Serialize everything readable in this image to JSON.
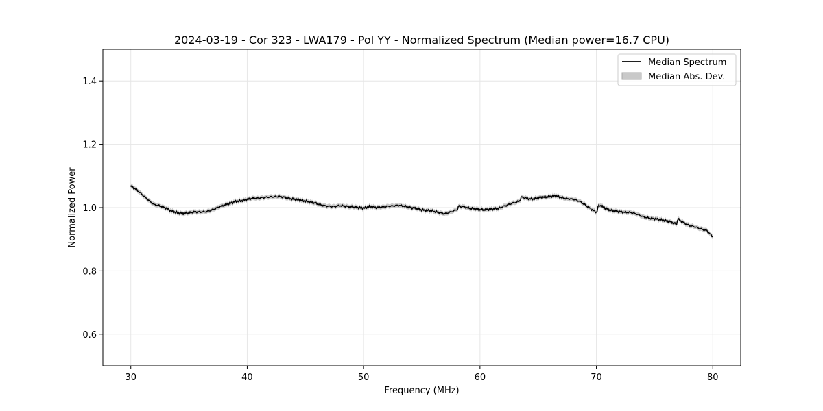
{
  "chart_data": {
    "type": "line",
    "title": "2024-03-19 - Cor 323 - LWA179 - Pol YY - Normalized Spectrum (Median power=16.7 CPU)",
    "xlabel": "Frequency (MHz)",
    "ylabel": "Normalized Power",
    "xlim": [
      27.6,
      82.4
    ],
    "ylim": [
      0.5,
      1.5
    ],
    "xticks": [
      30,
      40,
      50,
      60,
      70,
      80
    ],
    "xtick_labels": [
      "30",
      "40",
      "50",
      "60",
      "70",
      "80"
    ],
    "yticks": [
      0.6,
      0.8,
      1.0,
      1.2,
      1.4
    ],
    "ytick_labels": [
      "0.6",
      "0.8",
      "1.0",
      "1.2",
      "1.4"
    ],
    "grid": true,
    "legend_position": "top-right",
    "series": [
      {
        "name": "Median Spectrum",
        "color": "#000000",
        "x": [
          30.0,
          30.5,
          31.0,
          31.5,
          32.0,
          32.5,
          33.0,
          33.5,
          34.0,
          34.5,
          35.0,
          35.5,
          36.0,
          36.5,
          37.0,
          37.5,
          38.0,
          38.5,
          39.0,
          39.5,
          40.0,
          40.5,
          41.0,
          41.5,
          42.0,
          42.5,
          43.0,
          43.5,
          44.0,
          44.5,
          45.0,
          45.5,
          46.0,
          46.5,
          47.0,
          47.5,
          48.0,
          48.5,
          49.0,
          49.5,
          50.0,
          50.5,
          51.0,
          51.5,
          52.0,
          52.5,
          53.0,
          53.5,
          54.0,
          54.5,
          55.0,
          55.5,
          56.0,
          56.5,
          57.0,
          57.5,
          58.0,
          58.2,
          58.5,
          59.0,
          59.5,
          60.0,
          60.5,
          61.0,
          61.5,
          62.0,
          62.5,
          63.0,
          63.4,
          63.6,
          64.0,
          64.5,
          65.0,
          65.5,
          66.0,
          66.5,
          67.0,
          67.5,
          68.0,
          68.5,
          69.0,
          69.5,
          70.0,
          70.2,
          70.5,
          71.0,
          71.5,
          72.0,
          72.5,
          73.0,
          73.5,
          74.0,
          74.5,
          75.0,
          75.5,
          76.0,
          76.5,
          76.9,
          77.0,
          77.5,
          78.0,
          78.5,
          79.0,
          79.5,
          80.0
        ],
        "values": [
          1.067,
          1.055,
          1.04,
          1.025,
          1.01,
          1.005,
          0.998,
          0.988,
          0.985,
          0.983,
          0.982,
          0.985,
          0.986,
          0.988,
          0.994,
          1.0,
          1.007,
          1.013,
          1.02,
          1.023,
          1.025,
          1.028,
          1.03,
          1.033,
          1.035,
          1.034,
          1.033,
          1.03,
          1.027,
          1.025,
          1.02,
          1.015,
          1.012,
          1.008,
          1.005,
          1.003,
          1.005,
          1.004,
          1.003,
          1.001,
          0.998,
          1.002,
          1.0,
          1.003,
          1.005,
          1.005,
          1.006,
          1.004,
          1.002,
          0.998,
          0.992,
          0.99,
          0.988,
          0.985,
          0.982,
          0.986,
          0.992,
          1.007,
          1.003,
          1.0,
          0.997,
          0.993,
          0.993,
          0.995,
          0.997,
          1.005,
          1.01,
          1.015,
          1.02,
          1.035,
          1.03,
          1.028,
          1.03,
          1.032,
          1.035,
          1.038,
          1.033,
          1.028,
          1.025,
          1.02,
          1.01,
          0.998,
          0.985,
          1.01,
          1.002,
          0.994,
          0.99,
          0.988,
          0.985,
          0.983,
          0.978,
          0.972,
          0.968,
          0.965,
          0.96,
          0.958,
          0.955,
          0.945,
          0.965,
          0.952,
          0.942,
          0.938,
          0.933,
          0.928,
          0.908
        ]
      },
      {
        "name": "Median Abs. Dev.",
        "color": "#c0c0c0",
        "band_width": 0.007
      }
    ]
  }
}
